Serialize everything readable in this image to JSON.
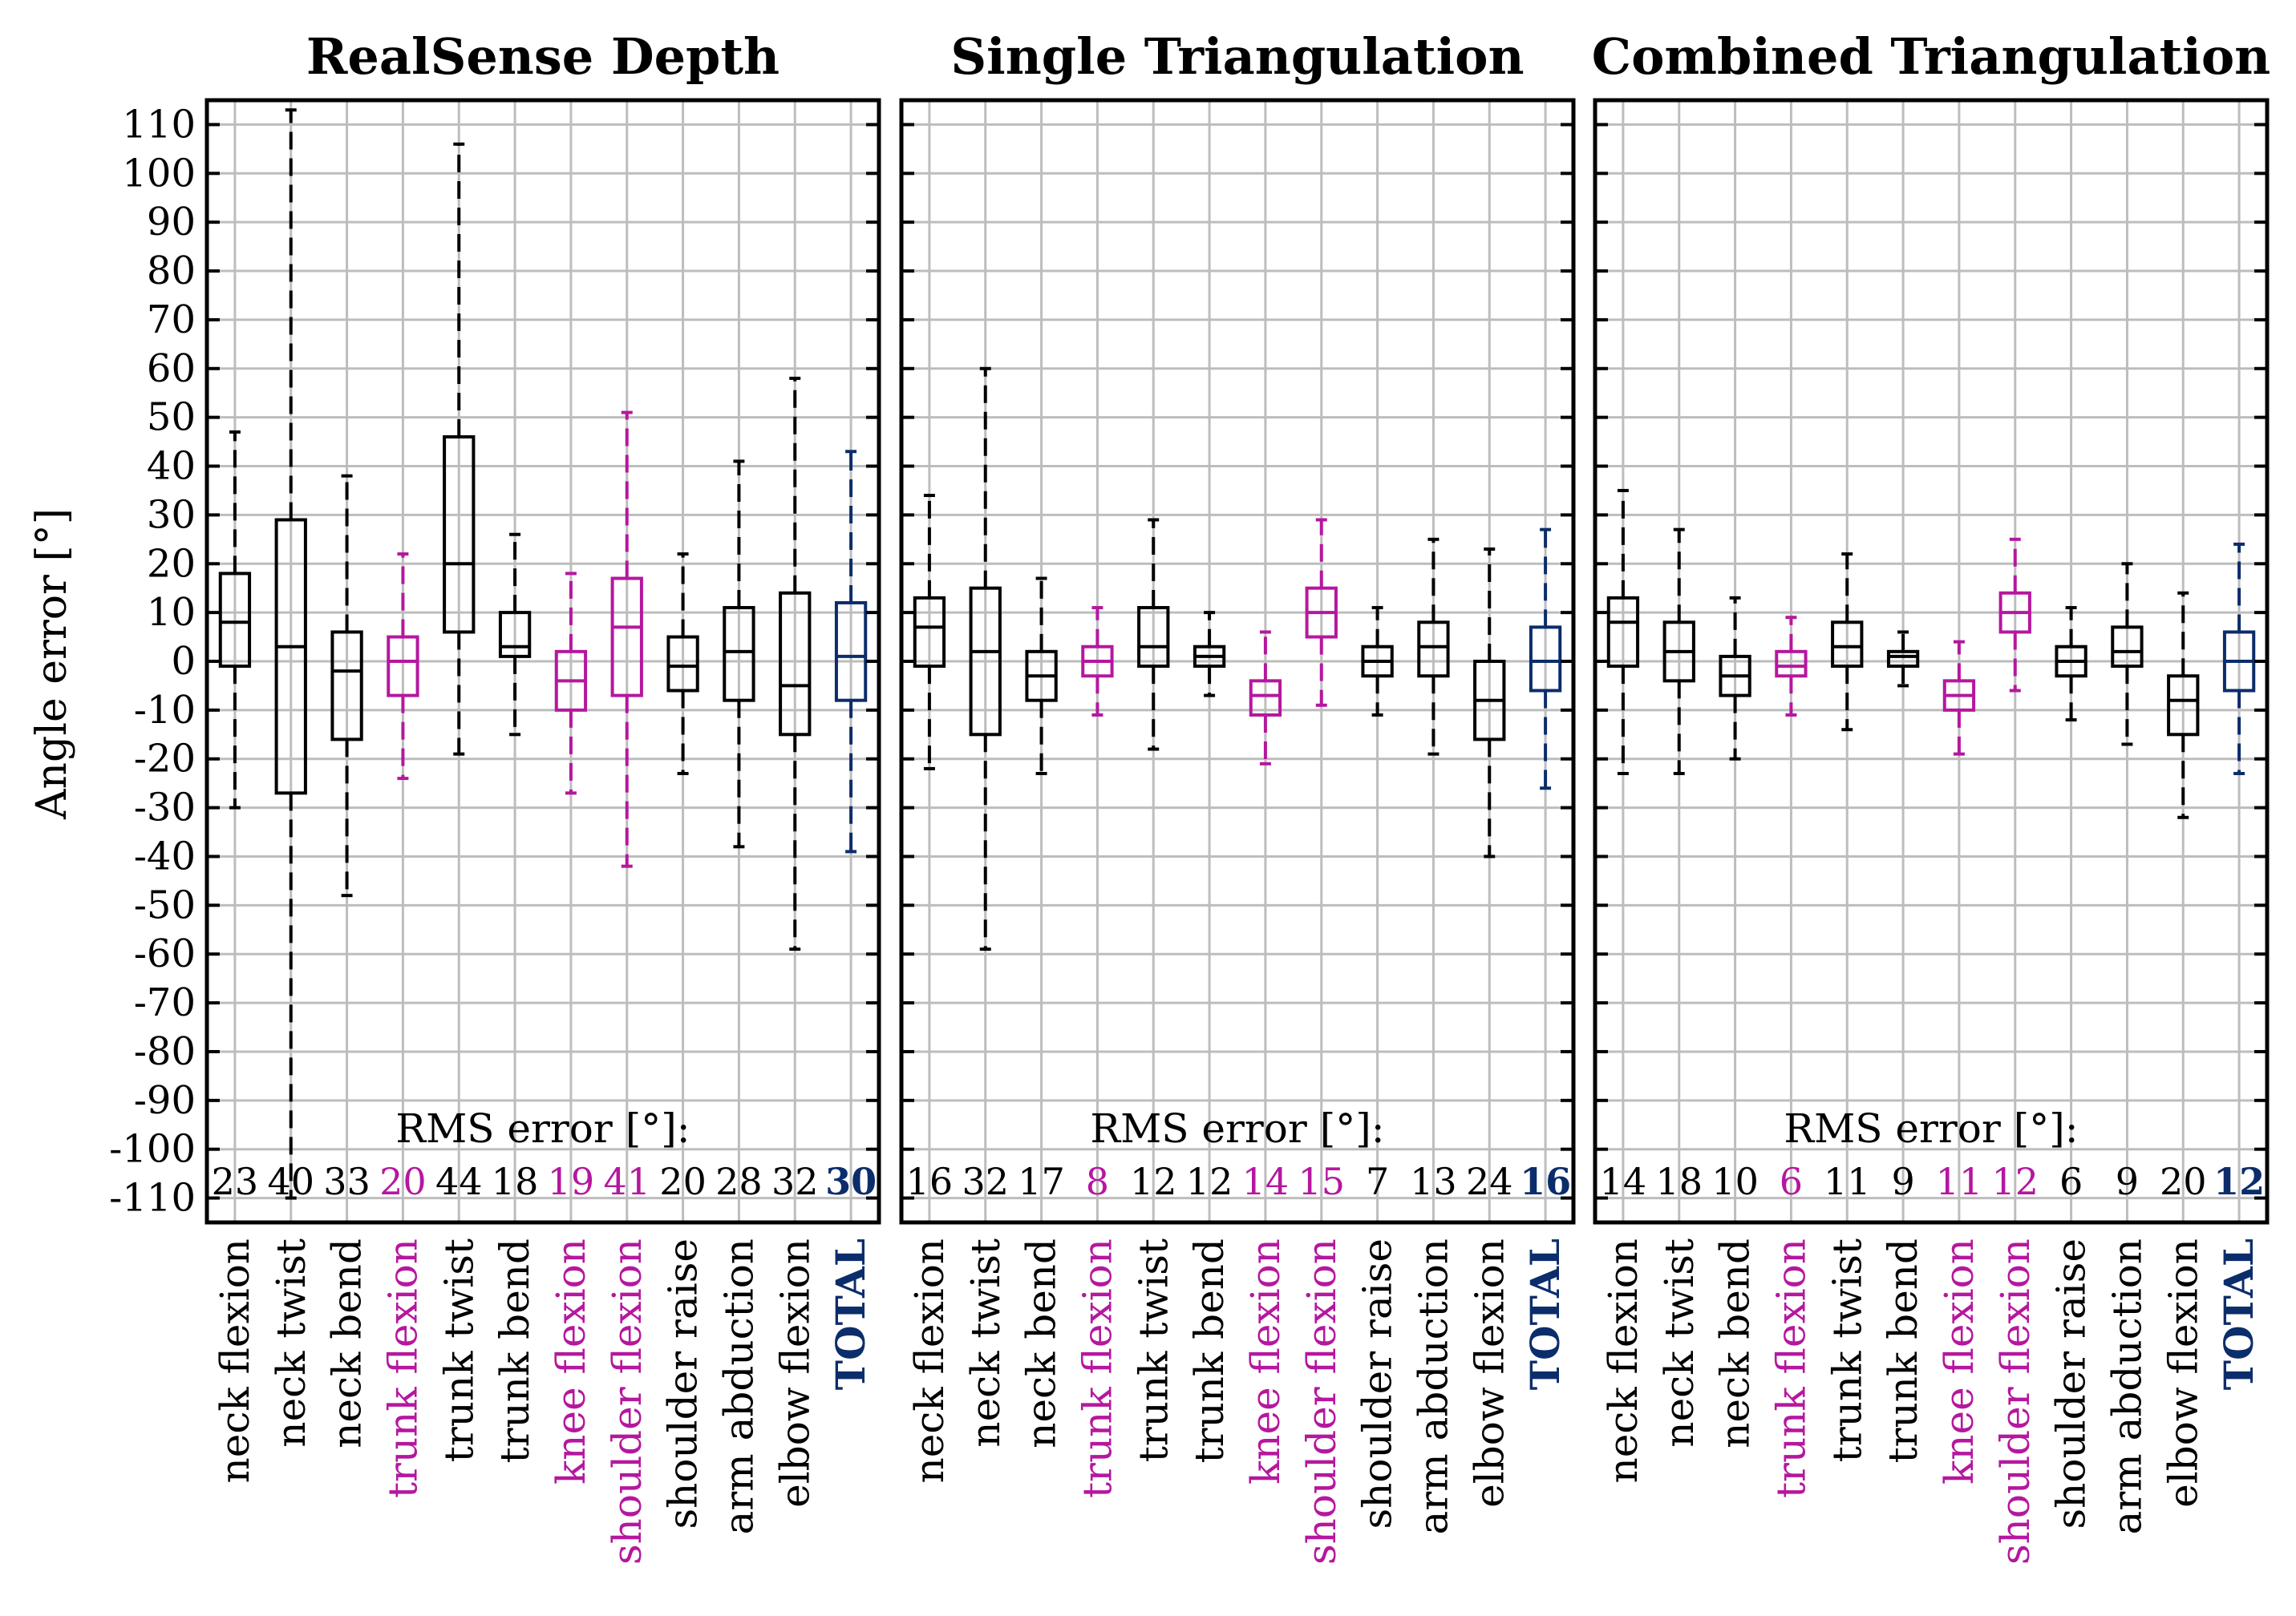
{
  "chart_data": {
    "type": "box",
    "ylabel": "Angle error [°]",
    "ylim": [
      -115,
      115
    ],
    "yticks": [
      110,
      100,
      90,
      80,
      70,
      60,
      50,
      40,
      30,
      20,
      10,
      0,
      -10,
      -20,
      -30,
      -40,
      -50,
      -60,
      -70,
      -80,
      -90,
      -100,
      -110
    ],
    "grid": true,
    "rms_label": "RMS error [°]:",
    "colors": {
      "default": "#000000",
      "highlight": "#b5179e",
      "total": "#0c2d6b",
      "grid": "#bdbdbd"
    },
    "categories": [
      "neck flexion",
      "neck twist",
      "neck bend",
      "trunk flexion",
      "trunk twist",
      "trunk bend",
      "knee flexion",
      "shoulder flexion",
      "shoulder raise",
      "arm abduction",
      "elbow flexion",
      "TOTAL"
    ],
    "category_color": [
      "default",
      "default",
      "default",
      "highlight",
      "default",
      "default",
      "highlight",
      "highlight",
      "default",
      "default",
      "default",
      "total"
    ],
    "panels": [
      {
        "title": "RealSense Depth",
        "rms": [
          "23",
          "40",
          "33",
          "20",
          "44",
          "18",
          "19",
          "41",
          "20",
          "28",
          "32",
          "30"
        ],
        "boxes": [
          {
            "whislo": -30,
            "q1": -1,
            "med": 8,
            "q3": 18,
            "whishi": 47
          },
          {
            "whislo": -110,
            "q1": -27,
            "med": 3,
            "q3": 29,
            "whishi": 113
          },
          {
            "whislo": -48,
            "q1": -16,
            "med": -2,
            "q3": 6,
            "whishi": 38
          },
          {
            "whislo": -24,
            "q1": -7,
            "med": 0,
            "q3": 5,
            "whishi": 22
          },
          {
            "whislo": -19,
            "q1": 6,
            "med": 20,
            "q3": 46,
            "whishi": 106
          },
          {
            "whislo": -15,
            "q1": 1,
            "med": 3,
            "q3": 10,
            "whishi": 26
          },
          {
            "whislo": -27,
            "q1": -10,
            "med": -4,
            "q3": 2,
            "whishi": 18
          },
          {
            "whislo": -42,
            "q1": -7,
            "med": 7,
            "q3": 17,
            "whishi": 51
          },
          {
            "whislo": -23,
            "q1": -6,
            "med": -1,
            "q3": 5,
            "whishi": 22
          },
          {
            "whislo": -38,
            "q1": -8,
            "med": 2,
            "q3": 11,
            "whishi": 41
          },
          {
            "whislo": -59,
            "q1": -15,
            "med": -5,
            "q3": 14,
            "whishi": 58
          },
          {
            "whislo": -39,
            "q1": -8,
            "med": 1,
            "q3": 12,
            "whishi": 43
          }
        ]
      },
      {
        "title": "Single Triangulation",
        "rms": [
          "16",
          "32",
          "17",
          "8",
          "12",
          "12",
          "14",
          "15",
          "7",
          "13",
          "24",
          "16"
        ],
        "boxes": [
          {
            "whislo": -22,
            "q1": -1,
            "med": 7,
            "q3": 13,
            "whishi": 34
          },
          {
            "whislo": -59,
            "q1": -15,
            "med": 2,
            "q3": 15,
            "whishi": 60
          },
          {
            "whislo": -23,
            "q1": -8,
            "med": -3,
            "q3": 2,
            "whishi": 17
          },
          {
            "whislo": -11,
            "q1": -3,
            "med": 0,
            "q3": 3,
            "whishi": 11
          },
          {
            "whislo": -18,
            "q1": -1,
            "med": 3,
            "q3": 11,
            "whishi": 29
          },
          {
            "whislo": -7,
            "q1": -1,
            "med": 1,
            "q3": 3,
            "whishi": 10
          },
          {
            "whislo": -21,
            "q1": -11,
            "med": -7,
            "q3": -4,
            "whishi": 6
          },
          {
            "whislo": -9,
            "q1": 5,
            "med": 10,
            "q3": 15,
            "whishi": 29
          },
          {
            "whislo": -11,
            "q1": -3,
            "med": 0,
            "q3": 3,
            "whishi": 11
          },
          {
            "whislo": -19,
            "q1": -3,
            "med": 3,
            "q3": 8,
            "whishi": 25
          },
          {
            "whislo": -40,
            "q1": -16,
            "med": -8,
            "q3": 0,
            "whishi": 23
          },
          {
            "whislo": -26,
            "q1": -6,
            "med": 0,
            "q3": 7,
            "whishi": 27
          }
        ]
      },
      {
        "title": "Combined Triangulation",
        "rms": [
          "14",
          "18",
          "10",
          "6",
          "11",
          "9",
          "11",
          "12",
          "6",
          "9",
          "20",
          "12"
        ],
        "boxes": [
          {
            "whislo": -23,
            "q1": -1,
            "med": 8,
            "q3": 13,
            "whishi": 35
          },
          {
            "whislo": -23,
            "q1": -4,
            "med": 2,
            "q3": 8,
            "whishi": 27
          },
          {
            "whislo": -20,
            "q1": -7,
            "med": -3,
            "q3": 1,
            "whishi": 13
          },
          {
            "whislo": -11,
            "q1": -3,
            "med": -1,
            "q3": 2,
            "whishi": 9
          },
          {
            "whislo": -14,
            "q1": -1,
            "med": 3,
            "q3": 8,
            "whishi": 22
          },
          {
            "whislo": -5,
            "q1": -1,
            "med": 1,
            "q3": 2,
            "whishi": 6
          },
          {
            "whislo": -19,
            "q1": -10,
            "med": -7,
            "q3": -4,
            "whishi": 4
          },
          {
            "whislo": -6,
            "q1": 6,
            "med": 10,
            "q3": 14,
            "whishi": 25
          },
          {
            "whislo": -12,
            "q1": -3,
            "med": 0,
            "q3": 3,
            "whishi": 11
          },
          {
            "whislo": -17,
            "q1": -1,
            "med": 2,
            "q3": 7,
            "whishi": 20
          },
          {
            "whislo": -32,
            "q1": -15,
            "med": -8,
            "q3": -3,
            "whishi": 14
          },
          {
            "whislo": -23,
            "q1": -6,
            "med": 0,
            "q3": 6,
            "whishi": 24
          }
        ]
      }
    ]
  }
}
